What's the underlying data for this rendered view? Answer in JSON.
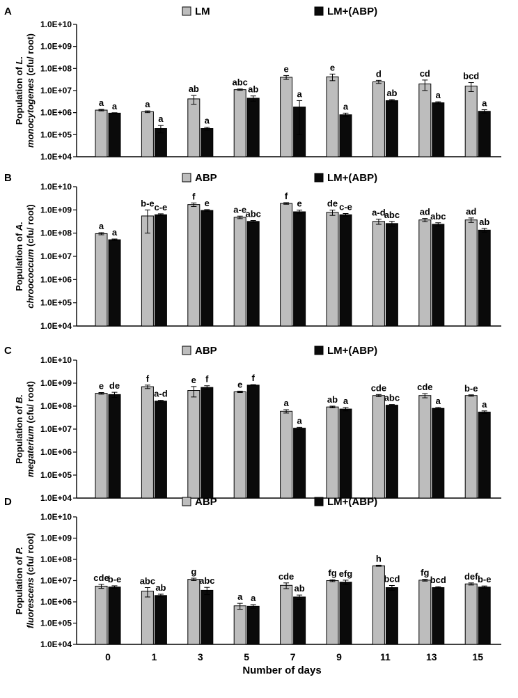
{
  "chart_data": [
    {
      "type": "bar",
      "panel": "A",
      "ylabel_line1": "Population of ",
      "ylabel_italic1": "L.",
      "ylabel_line2_italic": "monocytogenes",
      "ylabel_line2": " (cfu/ root)",
      "yscale": "log",
      "ylim": [
        10000,
        10000000000
      ],
      "yticks": [
        "1.0E+04",
        "1.0E+05",
        "1.0E+06",
        "1.0E+07",
        "1.0E+08",
        "1.0E+09",
        "1.0E+10"
      ],
      "categories": [
        "0",
        "1",
        "3",
        "5",
        "7",
        "9",
        "11",
        "13",
        "15"
      ],
      "legend_position": "top-center",
      "series": [
        {
          "name": "LM",
          "color": "#bdbdbd",
          "values": [
            1300000,
            1100000,
            4200000,
            11000000,
            40000000,
            42000000,
            25000000,
            20000000,
            16000000
          ],
          "errors": [
            100000,
            100000,
            1800000,
            800000,
            8000000,
            14000000,
            4000000,
            10000000,
            7000000
          ],
          "letters": [
            "a",
            "a",
            "ab",
            "abc",
            "e",
            "e",
            "d",
            "cd",
            "bcd"
          ]
        },
        {
          "name": "LM+(ABP)",
          "color": "#0a0a0a",
          "values": [
            950000,
            190000,
            190000,
            4500000,
            1800000,
            800000,
            3500000,
            2800000,
            1150000
          ],
          "errors": [
            40000,
            70000,
            30000,
            1200000,
            1700000,
            150000,
            400000,
            300000,
            200000
          ],
          "letters": [
            "a",
            "a",
            "a",
            "ab",
            "a",
            "a",
            "ab",
            "a",
            "a"
          ]
        }
      ]
    },
    {
      "type": "bar",
      "panel": "B",
      "ylabel_line1": "Population of ",
      "ylabel_italic1": "A.",
      "ylabel_line2_italic": "chroococcum",
      "ylabel_line2": " (cfu/ root)",
      "yscale": "log",
      "ylim": [
        10000,
        10000000000
      ],
      "yticks": [
        "1.0E+04",
        "1.0E+05",
        "1.0E+06",
        "1.0E+07",
        "1.0E+08",
        "1.0E+09",
        "1.0E+10"
      ],
      "categories": [
        "0",
        "1",
        "3",
        "5",
        "7",
        "9",
        "11",
        "13",
        "15"
      ],
      "legend_position": "top-center",
      "series": [
        {
          "name": "ABP",
          "color": "#bdbdbd",
          "values": [
            95000000,
            550000000,
            1700000000,
            480000000,
            1900000000,
            780000000,
            320000000,
            370000000,
            370000000
          ],
          "errors": [
            10000000,
            450000000,
            300000000,
            60000000,
            150000000,
            200000000,
            80000000,
            60000000,
            80000000
          ],
          "letters": [
            "a",
            "b-e",
            "f",
            "a-e",
            "f",
            "de",
            "a-d",
            "ad",
            "ad"
          ]
        },
        {
          "name": "LM+(ABP)",
          "color": "#0a0a0a",
          "values": [
            52000000,
            620000000,
            950000000,
            320000000,
            830000000,
            620000000,
            260000000,
            240000000,
            135000000
          ],
          "errors": [
            4000000,
            60000000,
            80000000,
            30000000,
            150000000,
            80000000,
            60000000,
            40000000,
            25000000
          ],
          "letters": [
            "a",
            "c-e",
            "e",
            "abc",
            "e",
            "c-e",
            "abc",
            "abc",
            "ab"
          ]
        }
      ]
    },
    {
      "type": "bar",
      "panel": "C",
      "ylabel_line1": "Population of ",
      "ylabel_italic1": "B.",
      "ylabel_line2_italic": "megaterium",
      "ylabel_line2": " (cfu/ root)",
      "yscale": "log",
      "ylim": [
        10000,
        10000000000
      ],
      "yticks": [
        "1.0E+04",
        "1.0E+05",
        "1.0E+06",
        "1.0E+07",
        "1.0E+08",
        "1.0E+09",
        "1.0E+10"
      ],
      "categories": [
        "0",
        "1",
        "3",
        "5",
        "7",
        "9",
        "11",
        "13",
        "15"
      ],
      "legend_position": "top-center",
      "series": [
        {
          "name": "ABP",
          "color": "#bdbdbd",
          "values": [
            360000000,
            700000000,
            480000000,
            420000000,
            60000000,
            92000000,
            290000000,
            290000000,
            290000000
          ],
          "errors": [
            30000000,
            120000000,
            230000000,
            30000000,
            10000000,
            8000000,
            30000000,
            60000000,
            20000000
          ],
          "letters": [
            "e",
            "f",
            "e",
            "e",
            "a",
            "ab",
            "cde",
            "cde",
            "b-e"
          ]
        },
        {
          "name": "LM+(ABP)",
          "color": "#0a0a0a",
          "values": [
            320000000,
            165000000,
            650000000,
            820000000,
            11000000,
            75000000,
            110000000,
            80000000,
            55000000
          ],
          "errors": [
            80000000,
            15000000,
            120000000,
            40000000,
            1000000,
            12000000,
            8000000,
            8000000,
            7000000
          ],
          "letters": [
            "de",
            "a-d",
            "f",
            "f",
            "a",
            "a",
            "abc",
            "a",
            "a"
          ]
        }
      ]
    },
    {
      "type": "bar",
      "panel": "D",
      "ylabel_line1": "Population of ",
      "ylabel_italic1": "P.",
      "ylabel_line2_italic": "fluorescens",
      "ylabel_line2": " (cfu/ root)",
      "yscale": "log",
      "ylim": [
        10000,
        10000000000
      ],
      "yticks": [
        "1.0E+04",
        "1.0E+05",
        "1.0E+06",
        "1.0E+07",
        "1.0E+08",
        "1.0E+09",
        "1.0E+10"
      ],
      "categories": [
        "0",
        "1",
        "3",
        "5",
        "7",
        "9",
        "11",
        "13",
        "15"
      ],
      "xlabel": "Number of days",
      "legend_position": "top-center",
      "series": [
        {
          "name": "ABP",
          "color": "#bdbdbd",
          "values": [
            5500000,
            3200000,
            11500000,
            650000,
            6000000,
            10000000,
            50000000,
            10500000,
            7000000
          ],
          "errors": [
            1200000,
            1500000,
            1500000,
            200000,
            1800000,
            1000000,
            3000000,
            1000000,
            800000
          ],
          "letters": [
            "cde",
            "abc",
            "g",
            "a",
            "cde",
            "fg",
            "h",
            "fg",
            "def"
          ]
        },
        {
          "name": "LM+(ABP)",
          "color": "#0a0a0a",
          "values": [
            5000000,
            2000000,
            3500000,
            620000,
            1700000,
            8500000,
            4700000,
            4700000,
            5000000
          ],
          "errors": [
            700000,
            300000,
            1300000,
            120000,
            400000,
            2000000,
            1200000,
            500000,
            600000
          ],
          "letters": [
            "b-e",
            "ab",
            "abc",
            "a",
            "ab",
            "efg",
            "bcd",
            "bcd",
            "b-e"
          ]
        }
      ]
    }
  ]
}
